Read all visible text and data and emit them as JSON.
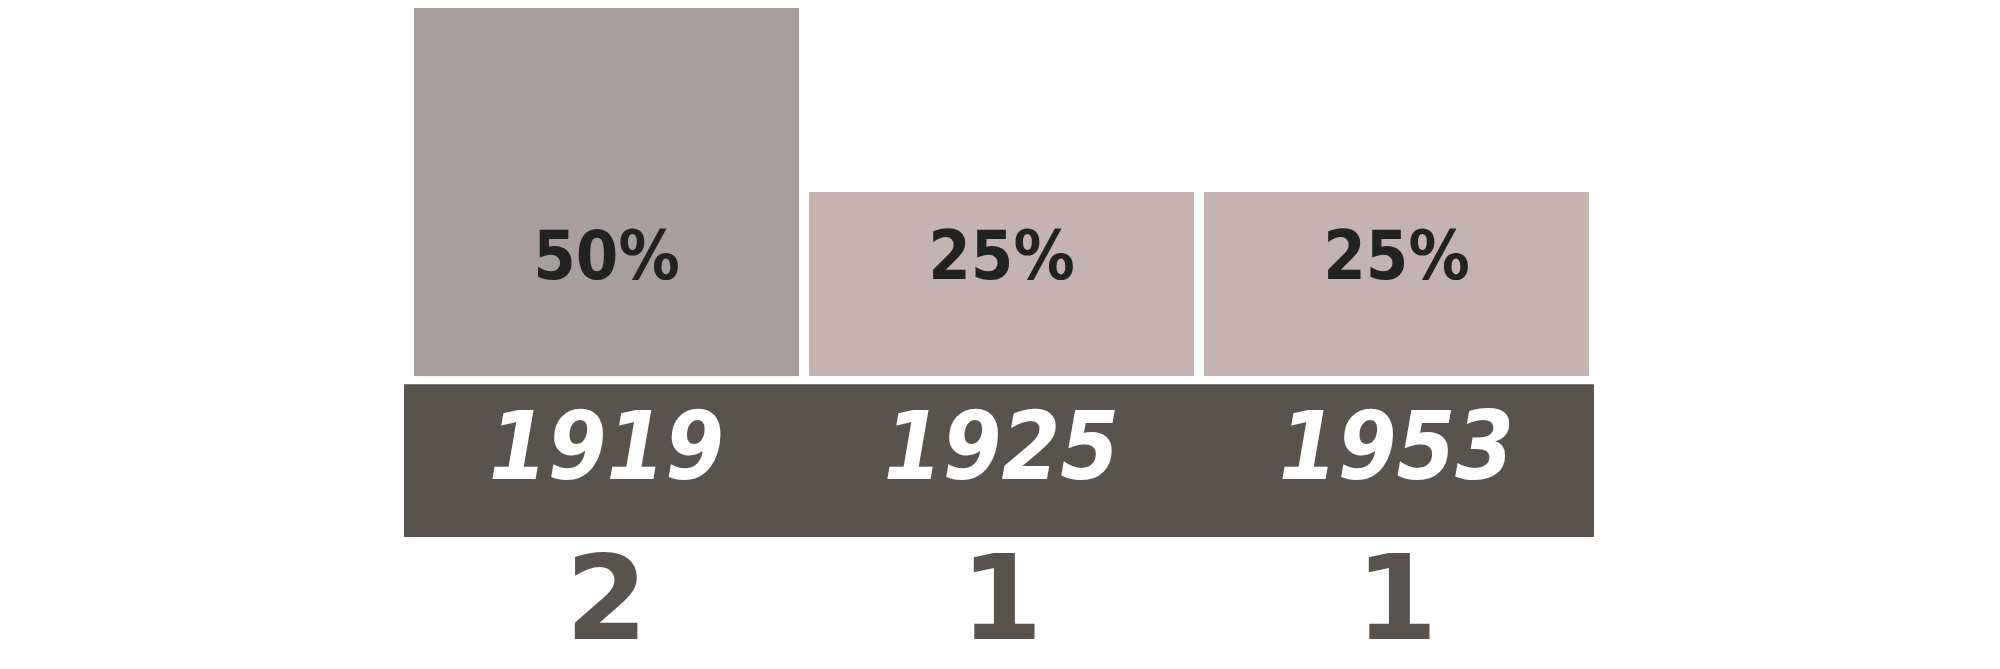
{
  "chart_data": {
    "type": "bar",
    "categories": [
      "1919",
      "1925",
      "1953"
    ],
    "values": [
      50,
      25,
      25
    ],
    "colors": [
      "#a89e9e",
      "#c4b3b2",
      "#c4b3b2"
    ],
    "value_labels": [
      "50%",
      "25%",
      "25%"
    ],
    "ylim": [
      0,
      50
    ],
    "tick_labels": "x",
    "grid": false,
    "legend": false,
    "annotations": [
      "2",
      "1",
      "1"
    ]
  }
}
